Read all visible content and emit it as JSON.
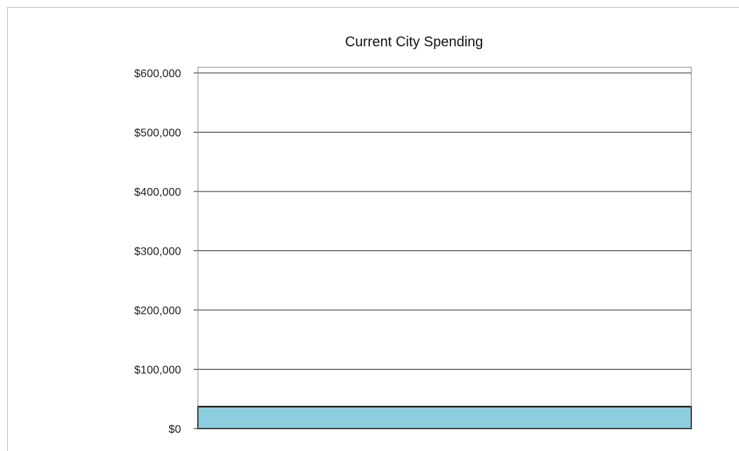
{
  "chart_data": {
    "type": "bar",
    "title": "Current City Spending",
    "xlabel": "",
    "ylabel": "",
    "categories": [
      ""
    ],
    "series": [
      {
        "values": [
          37000
        ],
        "color": "#8ecde0"
      }
    ],
    "ylim": [
      0,
      600000
    ],
    "yticks": [
      0,
      100000,
      200000,
      300000,
      400000,
      500000,
      600000
    ],
    "ytick_labels": [
      "$0",
      "$100,000",
      "$200,000",
      "$300,000",
      "$400,000",
      "$500,000",
      "$600,000"
    ],
    "grid": true,
    "legend": "none"
  }
}
